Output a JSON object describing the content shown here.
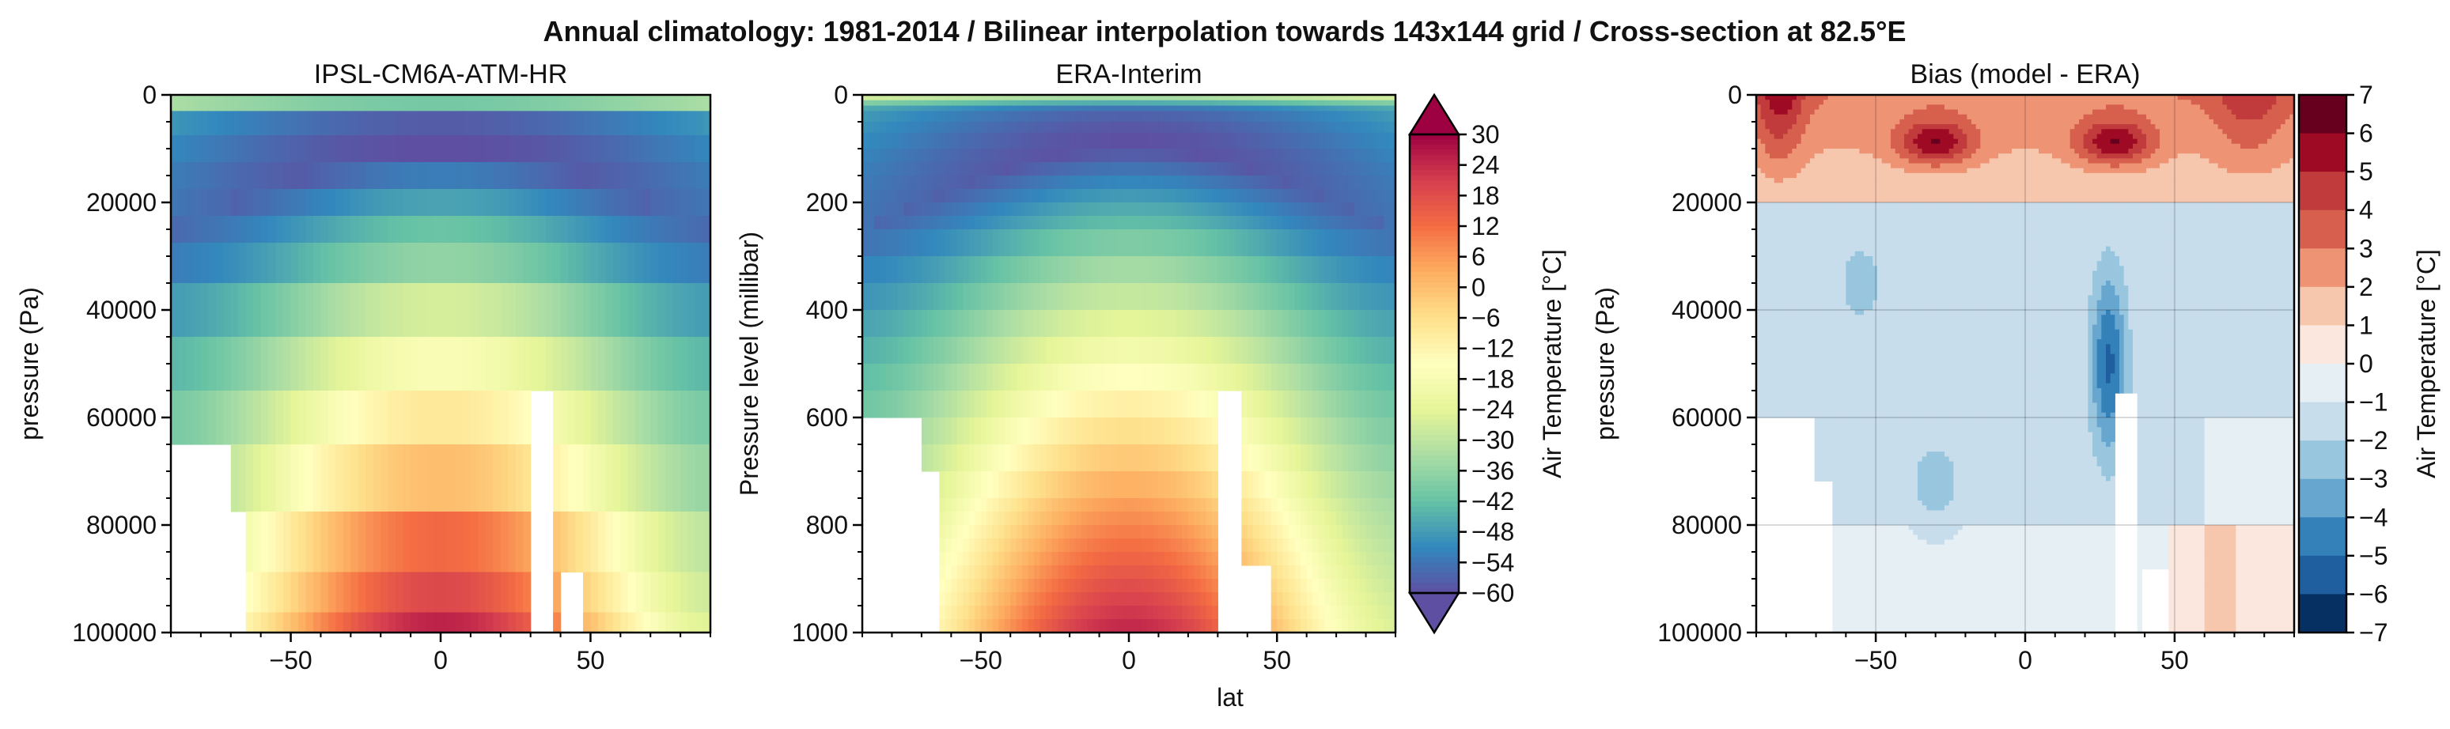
{
  "figure": {
    "suptitle": "Annual climatology: 1981-2014 / Bilinear interpolation towards 143x144 grid / Cross-section at 82.5°E",
    "shared_xlabel": "lat"
  },
  "chart_data": [
    {
      "type": "heatmap",
      "title": "IPSL-CM6A-ATM-HR",
      "ylabel": "pressure (Pa)",
      "xlabel": "",
      "xlim": [
        -90,
        90
      ],
      "ylim": [
        100000,
        0
      ],
      "xticks": [
        -50,
        0,
        50
      ],
      "yticks": [
        0,
        20000,
        40000,
        60000,
        80000,
        100000
      ],
      "ytick_labels": [
        "0",
        "20000",
        "40000",
        "60000",
        "80000",
        "100000"
      ],
      "xtick_labels": [
        "−50",
        "0",
        "50"
      ],
      "colormap": "Spectral_r",
      "value_range_degC": [
        -60,
        30
      ],
      "shading": "blocky pressure levels",
      "pressure_levels_Pa": [
        1000,
        5000,
        10000,
        15000,
        20000,
        25000,
        30000,
        40000,
        50000,
        60000,
        70000,
        85000,
        92500,
        100000
      ],
      "profile_degC": {
        "equator_surface": 25,
        "pole_surface": -25,
        "tropopause_cold": -60
      },
      "missing_region": "white (below ground, Tibetan Plateau ~30-38°N and Antarctica)"
    },
    {
      "type": "heatmap",
      "title": "ERA-Interim",
      "ylabel": "Pressure level (millibar)",
      "xlabel": "lat",
      "xlim": [
        -90,
        90
      ],
      "ylim": [
        1000,
        0
      ],
      "xticks": [
        -50,
        0,
        50
      ],
      "yticks": [
        0,
        200,
        400,
        600,
        800,
        1000
      ],
      "ytick_labels": [
        "0",
        "200",
        "400",
        "600",
        "800",
        "1000"
      ],
      "xtick_labels": [
        "−50",
        "0",
        "50"
      ],
      "colormap": "Spectral_r",
      "value_range_degC": [
        -60,
        30
      ],
      "colorbar": {
        "label": "Air Temperature [°C]",
        "ticks": [
          30,
          24,
          18,
          12,
          6,
          0,
          -6,
          -12,
          -18,
          -24,
          -30,
          -36,
          -42,
          -48,
          -54,
          -60
        ],
        "tick_labels": [
          "30",
          "24",
          "18",
          "12",
          "6",
          "0",
          "−6",
          "−12",
          "−18",
          "−24",
          "−30",
          "−36",
          "−42",
          "−48",
          "−54",
          "−60"
        ],
        "extend": "both"
      }
    },
    {
      "type": "heatmap",
      "title": "Bias (model - ERA)",
      "ylabel": "pressure (Pa)",
      "xlabel": "",
      "xlim": [
        -90,
        90
      ],
      "ylim": [
        100000,
        0
      ],
      "xticks": [
        -50,
        0,
        50
      ],
      "yticks": [
        0,
        20000,
        40000,
        60000,
        80000,
        100000
      ],
      "ytick_labels": [
        "0",
        "20000",
        "40000",
        "60000",
        "80000",
        "100000"
      ],
      "xtick_labels": [
        "−50",
        "0",
        "50"
      ],
      "grid": true,
      "colormap": "RdBu_r",
      "levels": [
        -7,
        -6,
        -5,
        -4,
        -3,
        -2,
        -1,
        0,
        1,
        2,
        3,
        4,
        5,
        6,
        7
      ],
      "colorbar": {
        "label": "Air Temperature [°C]",
        "ticks": [
          7,
          6,
          5,
          4,
          3,
          2,
          1,
          0,
          -1,
          -2,
          -3,
          -4,
          -5,
          -6,
          -7
        ],
        "tick_labels": [
          "7",
          "6",
          "5",
          "4",
          "3",
          "2",
          "1",
          "0",
          "−1",
          "−2",
          "−3",
          "−4",
          "−5",
          "−6",
          "−7"
        ],
        "colors": [
          "#67001f",
          "#9e0a24",
          "#c13b3c",
          "#d6604d",
          "#ee9475",
          "#f6c6ad",
          "#fbe7de",
          "#e6eff4",
          "#c7ddec",
          "#99c6df",
          "#66a6cf",
          "#3481b9",
          "#1f5fa0",
          "#053061"
        ]
      },
      "features": {
        "upper_warm_bias_degC": 6,
        "warm_maxima_lat": [
          -30,
          30
        ],
        "cold_bias_lat": 28,
        "cold_bias_degC": -5,
        "general_troposphere_bias_degC": -1.5
      }
    }
  ]
}
